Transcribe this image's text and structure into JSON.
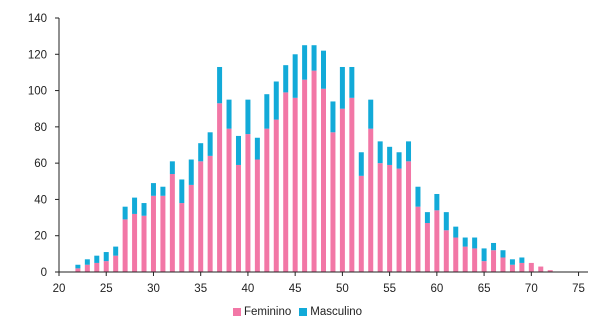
{
  "chart_data": {
    "type": "bar",
    "stacked": true,
    "x": [
      22,
      23,
      24,
      25,
      26,
      27,
      28,
      29,
      30,
      31,
      32,
      33,
      34,
      35,
      36,
      37,
      38,
      39,
      40,
      41,
      42,
      43,
      44,
      45,
      46,
      47,
      48,
      49,
      50,
      51,
      52,
      53,
      54,
      55,
      56,
      57,
      58,
      59,
      60,
      61,
      62,
      63,
      64,
      65,
      66,
      67,
      68,
      69,
      70,
      71,
      72,
      73,
      74
    ],
    "series": [
      {
        "name": "Feminino",
        "color": "#f277a6",
        "values": [
          2,
          4,
          5,
          6,
          9,
          29,
          32,
          31,
          42,
          42,
          54,
          38,
          48,
          61,
          64,
          93,
          79,
          59,
          76,
          62,
          79,
          84,
          99,
          96,
          106,
          111,
          101,
          77,
          90,
          96,
          53,
          79,
          60,
          59,
          57,
          61,
          36,
          27,
          34,
          23,
          19,
          14,
          13,
          6,
          12,
          8,
          4,
          5,
          5,
          3,
          1,
          0,
          0
        ]
      },
      {
        "name": "Masculino",
        "color": "#12aad8",
        "values": [
          2,
          3,
          4,
          5,
          5,
          7,
          9,
          7,
          7,
          5,
          7,
          13,
          14,
          10,
          13,
          20,
          16,
          16,
          19,
          12,
          19,
          21,
          15,
          24,
          19,
          14,
          21,
          17,
          23,
          17,
          13,
          16,
          12,
          10,
          9,
          11,
          11,
          6,
          9,
          10,
          6,
          5,
          6,
          7,
          4,
          4,
          3,
          3,
          0,
          0,
          0,
          0,
          0
        ]
      }
    ],
    "xlim": [
      20,
      76
    ],
    "ylim": [
      0,
      140
    ],
    "xticks": [
      20,
      25,
      30,
      35,
      40,
      45,
      50,
      55,
      60,
      65,
      70,
      75
    ],
    "yticks": [
      0,
      20,
      40,
      60,
      80,
      100,
      120,
      140
    ],
    "grid": false,
    "legend_position": "bottom-center",
    "title": "",
    "xlabel": "",
    "ylabel": ""
  }
}
